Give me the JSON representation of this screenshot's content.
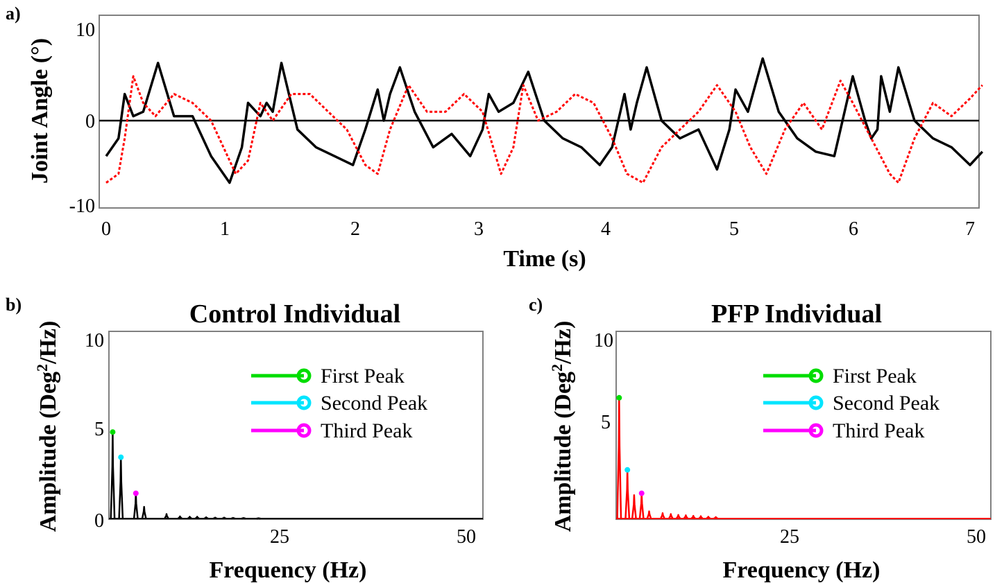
{
  "colors": {
    "black": "#000000",
    "red": "#ff0000",
    "frame": "#808080",
    "first_peak": "#00dd00",
    "second_peak": "#00e5ff",
    "third_peak": "#ff00ff"
  },
  "chart_data": [
    {
      "panel_label": "a)",
      "type": "line",
      "title": "",
      "xlabel": "Time (s)",
      "ylabel": "Joint Angle (°)",
      "xlim": [
        0,
        7.1
      ],
      "ylim": [
        -10,
        10
      ],
      "xticks": [
        "0",
        "1",
        "2",
        "3",
        "4",
        "5",
        "6",
        "7"
      ],
      "yticks": [
        "-10",
        "0",
        "10"
      ],
      "reference_line_y": 0,
      "grid": false,
      "series": [
        {
          "color": "#000000",
          "style": "solid",
          "x": [
            0,
            0.1,
            0.15,
            0.22,
            0.3,
            0.42,
            0.55,
            0.7,
            0.85,
            1.0,
            1.1,
            1.15,
            1.25,
            1.3,
            1.35,
            1.42,
            1.55,
            1.7,
            1.85,
            2.0,
            2.1,
            2.2,
            2.25,
            2.3,
            2.38,
            2.5,
            2.65,
            2.8,
            2.95,
            3.05,
            3.1,
            3.18,
            3.3,
            3.42,
            3.55,
            3.7,
            3.85,
            4.0,
            4.1,
            4.2,
            4.25,
            4.3,
            4.38,
            4.5,
            4.65,
            4.8,
            4.95,
            5.05,
            5.1,
            5.2,
            5.32,
            5.45,
            5.6,
            5.75,
            5.9,
            5.95,
            6.05,
            6.15,
            6.2,
            6.25,
            6.28,
            6.35,
            6.42,
            6.55,
            6.7,
            6.85,
            7.0,
            7.1
          ],
          "y": [
            -4,
            -2,
            3,
            0.5,
            1,
            6.5,
            0.5,
            0.5,
            -4,
            -7,
            -3,
            2,
            0.5,
            2,
            1,
            6.5,
            -1,
            -3,
            -4,
            -5,
            -1,
            3.5,
            0,
            3,
            6,
            1,
            -3,
            -1.5,
            -4,
            -1,
            3,
            1,
            2,
            5.5,
            0,
            -2,
            -3,
            -5,
            -3,
            3,
            -1,
            2,
            6,
            0,
            -2,
            -1,
            -5.5,
            -1,
            3.5,
            1,
            7,
            1,
            -2,
            -3.5,
            -4,
            -1,
            5,
            0,
            -2,
            -1,
            5,
            1,
            6,
            0,
            -2,
            -3,
            -5,
            -3.5
          ]
        },
        {
          "color": "#ff0000",
          "style": "dotted",
          "x": [
            0,
            0.1,
            0.15,
            0.22,
            0.3,
            0.4,
            0.55,
            0.7,
            0.85,
            0.95,
            1.05,
            1.15,
            1.25,
            1.35,
            1.5,
            1.65,
            1.8,
            1.95,
            2.1,
            2.2,
            2.3,
            2.45,
            2.6,
            2.75,
            2.9,
            3.05,
            3.2,
            3.3,
            3.38,
            3.5,
            3.65,
            3.8,
            3.95,
            4.1,
            4.22,
            4.35,
            4.5,
            4.65,
            4.8,
            4.95,
            5.1,
            5.22,
            5.35,
            5.5,
            5.65,
            5.8,
            5.95,
            6.05,
            6.2,
            6.35,
            6.42,
            6.55,
            6.7,
            6.85,
            7.0,
            7.1
          ],
          "y": [
            -7,
            -6,
            -2,
            5,
            2,
            0.5,
            3,
            2,
            0,
            -3,
            -6,
            -4.5,
            2,
            0,
            3,
            3,
            1,
            -1,
            -5,
            -6,
            -1,
            4,
            1,
            1,
            3,
            1,
            -6,
            -3,
            4,
            0,
            1,
            3,
            2,
            -2,
            -6,
            -7,
            -3,
            -1,
            1,
            4,
            1,
            -3,
            -6,
            -1,
            2,
            -1,
            4.5,
            2,
            -2,
            -6,
            -7,
            -2,
            2,
            0.5,
            2.5,
            4
          ]
        }
      ]
    },
    {
      "panel_label": "b)",
      "type": "line",
      "title": "Control Individual",
      "xlabel": "Frequency (Hz)",
      "ylabel": "Amplitude (Deg²/Hz)",
      "ylabel_text": "Amplitude (Deg",
      "ylabel_sup": "2",
      "ylabel_end": "/Hz)",
      "xlim": [
        0,
        50
      ],
      "ylim": [
        0,
        10
      ],
      "xticks": [
        "25",
        "50"
      ],
      "yticks": [
        "0",
        "5",
        "10"
      ],
      "line_color": "#000000",
      "spectrum_peaks": [
        [
          0.5,
          4.8
        ],
        [
          1.6,
          3.4
        ],
        [
          3.6,
          1.4
        ],
        [
          4.7,
          0.65
        ],
        [
          7.7,
          0.25
        ],
        [
          9.5,
          0.12
        ],
        [
          10.8,
          0.1
        ],
        [
          11.8,
          0.1
        ],
        [
          13,
          0.07
        ],
        [
          14.2,
          0.05
        ],
        [
          15.4,
          0.05
        ],
        [
          16.6,
          0.04
        ],
        [
          18,
          0.03
        ],
        [
          20,
          0.02
        ]
      ],
      "marked_peaks": [
        {
          "name": "First Peak",
          "x": 0.5,
          "y": 4.8,
          "color": "#00dd00"
        },
        {
          "name": "Second Peak",
          "x": 1.6,
          "y": 3.4,
          "color": "#00e5ff"
        },
        {
          "name": "Third Peak",
          "x": 3.6,
          "y": 1.4,
          "color": "#ff00ff"
        }
      ],
      "legend": [
        "First Peak",
        "Second Peak",
        "Third Peak"
      ],
      "legend_placement": "top-right"
    },
    {
      "panel_label": "c)",
      "type": "line",
      "title": "PFP Individual",
      "xlabel": "Frequency (Hz)",
      "ylabel": "Amplitude (Deg²/Hz)",
      "ylabel_text": "Amplitude (Deg",
      "ylabel_sup": "2",
      "ylabel_end": "/Hz)",
      "xlim": [
        0,
        50
      ],
      "ylim": [
        0,
        10
      ],
      "xticks": [
        "25",
        "50"
      ],
      "yticks": [
        "5",
        "10"
      ],
      "line_color": "#ff0000",
      "spectrum_peaks": [
        [
          0.4,
          6.7
        ],
        [
          1.5,
          2.7
        ],
        [
          2.4,
          1.3
        ],
        [
          3.4,
          1.4
        ],
        [
          4.4,
          0.4
        ],
        [
          6.2,
          0.3
        ],
        [
          7.3,
          0.25
        ],
        [
          8.3,
          0.2
        ],
        [
          9.3,
          0.18
        ],
        [
          10.3,
          0.15
        ],
        [
          11.3,
          0.13
        ],
        [
          12.3,
          0.1
        ],
        [
          13.3,
          0.08
        ]
      ],
      "marked_peaks": [
        {
          "name": "First Peak",
          "x": 0.4,
          "y": 6.7,
          "color": "#00dd00"
        },
        {
          "name": "Second Peak",
          "x": 1.5,
          "y": 2.7,
          "color": "#00e5ff"
        },
        {
          "name": "Third Peak",
          "x": 3.4,
          "y": 1.4,
          "color": "#ff00ff"
        }
      ],
      "legend": [
        "First Peak",
        "Second Peak",
        "Third Peak"
      ],
      "legend_placement": "top-right"
    }
  ]
}
